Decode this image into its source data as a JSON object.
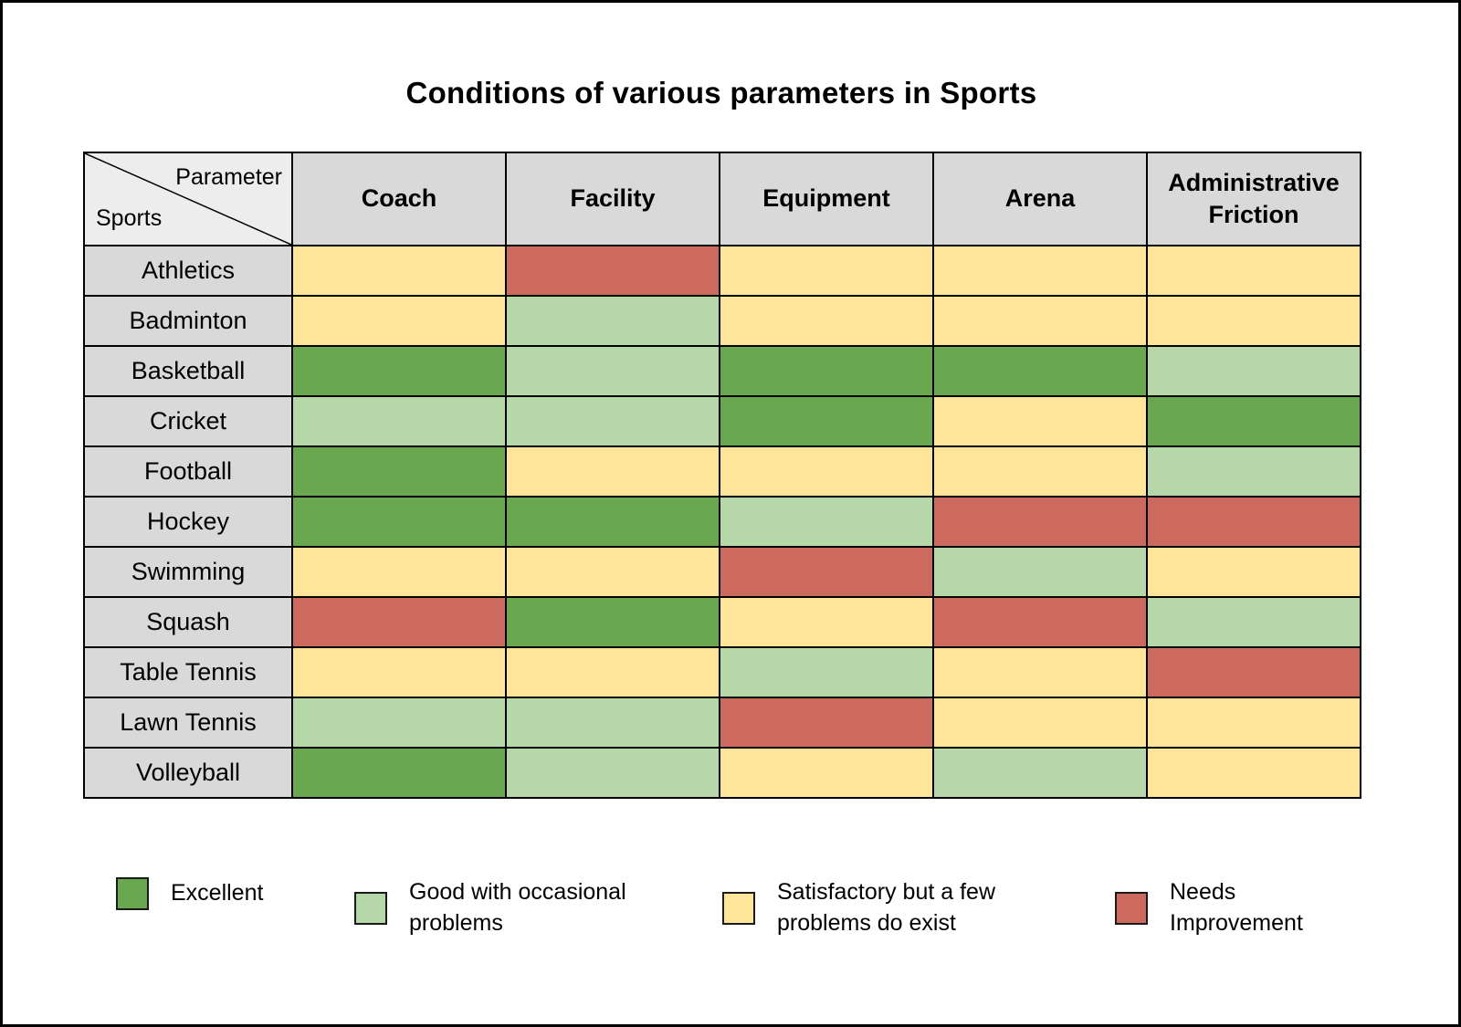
{
  "title": "Conditions of various parameters in Sports",
  "corner": {
    "top": "Parameter",
    "bottom": "Sports"
  },
  "colors": {
    "excellent": "#6aa84f",
    "good": "#b6d7a8",
    "satisfactory": "#ffe59a",
    "needs_improvement": "#cd6a5f",
    "header_bg": "#d9d9d9",
    "corner_bg": "#ededed"
  },
  "legend": [
    {
      "key": "excellent",
      "label": "Excellent"
    },
    {
      "key": "good",
      "label": "Good with occasional problems"
    },
    {
      "key": "satisfactory",
      "label": "Satisfactory but a few problems do exist"
    },
    {
      "key": "needs_improvement",
      "label": "Needs Improvement"
    }
  ],
  "chart_data": {
    "type": "heatmap",
    "title": "Conditions of various parameters in Sports",
    "columns": [
      "Coach",
      "Facility",
      "Equipment",
      "Arena",
      "Administrative Friction"
    ],
    "rows": [
      "Athletics",
      "Badminton",
      "Basketball",
      "Cricket",
      "Football",
      "Hockey",
      "Swimming",
      "Squash",
      "Table Tennis",
      "Lawn Tennis",
      "Volleyball"
    ],
    "values": [
      [
        "satisfactory",
        "needs_improvement",
        "satisfactory",
        "satisfactory",
        "satisfactory"
      ],
      [
        "satisfactory",
        "good",
        "satisfactory",
        "satisfactory",
        "satisfactory"
      ],
      [
        "excellent",
        "good",
        "excellent",
        "excellent",
        "good"
      ],
      [
        "good",
        "good",
        "excellent",
        "satisfactory",
        "excellent"
      ],
      [
        "excellent",
        "satisfactory",
        "satisfactory",
        "satisfactory",
        "good"
      ],
      [
        "excellent",
        "excellent",
        "good",
        "needs_improvement",
        "needs_improvement"
      ],
      [
        "satisfactory",
        "satisfactory",
        "needs_improvement",
        "good",
        "satisfactory"
      ],
      [
        "needs_improvement",
        "excellent",
        "satisfactory",
        "needs_improvement",
        "good"
      ],
      [
        "satisfactory",
        "satisfactory",
        "good",
        "satisfactory",
        "needs_improvement"
      ],
      [
        "good",
        "good",
        "needs_improvement",
        "satisfactory",
        "satisfactory"
      ],
      [
        "excellent",
        "good",
        "satisfactory",
        "good",
        "satisfactory"
      ]
    ],
    "legend": {
      "excellent": "Excellent",
      "good": "Good with occasional problems",
      "satisfactory": "Satisfactory but a few problems do exist",
      "needs_improvement": "Needs Improvement"
    }
  }
}
